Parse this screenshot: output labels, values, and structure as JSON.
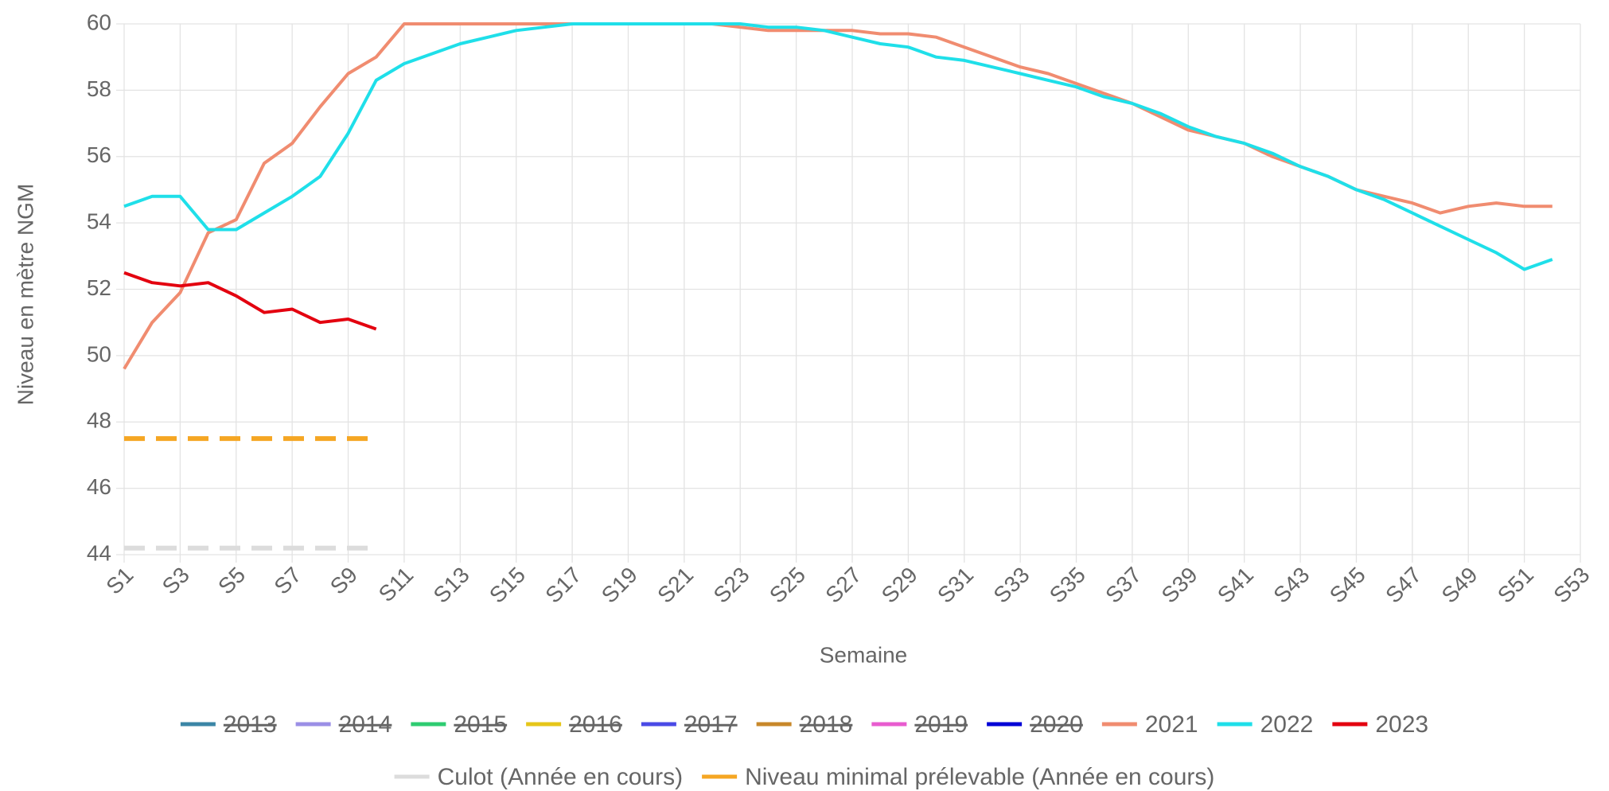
{
  "chart_data": {
    "type": "line",
    "x_label": "Semaine",
    "y_label": "Niveau en mètre NGM",
    "categories": [
      "S1",
      null,
      "S3",
      null,
      "S5",
      null,
      "S7",
      null,
      "S9",
      null,
      "S11",
      null,
      "S13",
      null,
      "S15",
      null,
      "S17",
      null,
      "S19",
      null,
      "S21",
      null,
      "S23",
      null,
      "S25",
      null,
      "S27",
      null,
      "S29",
      null,
      "S31",
      null,
      "S33",
      null,
      "S35",
      null,
      "S37",
      null,
      "S39",
      null,
      "S41",
      null,
      "S43",
      null,
      "S45",
      null,
      "S47",
      null,
      "S49",
      null,
      "S51",
      null,
      "S53"
    ],
    "ylim": [
      44,
      60
    ],
    "yticks": [
      44,
      46,
      48,
      50,
      52,
      54,
      56,
      58,
      60
    ],
    "grid": true,
    "series": [
      {
        "name": "2013",
        "color": "#3b86a6",
        "hidden": true
      },
      {
        "name": "2014",
        "color": "#9b8fe6",
        "hidden": true
      },
      {
        "name": "2015",
        "color": "#2ecc71",
        "hidden": true
      },
      {
        "name": "2016",
        "color": "#e6c619",
        "hidden": true
      },
      {
        "name": "2017",
        "color": "#4a4ae6",
        "hidden": true
      },
      {
        "name": "2018",
        "color": "#c8882a",
        "hidden": true
      },
      {
        "name": "2019",
        "color": "#e85ccf",
        "hidden": true
      },
      {
        "name": "2020",
        "color": "#0000d6",
        "hidden": true
      },
      {
        "name": "2021",
        "color": "#f08c70",
        "values": [
          49.6,
          51.0,
          51.9,
          53.7,
          54.1,
          55.8,
          56.4,
          57.5,
          58.5,
          59.0,
          60,
          60,
          60,
          60,
          60,
          60,
          60,
          60,
          60,
          60,
          60,
          60,
          59.9,
          59.8,
          59.8,
          59.8,
          59.8,
          59.7,
          59.7,
          59.6,
          59.3,
          59.0,
          58.7,
          58.5,
          58.2,
          57.9,
          57.6,
          57.2,
          56.8,
          56.6,
          56.4,
          56.0,
          55.7,
          55.4,
          55.0,
          54.8,
          54.6,
          54.3,
          54.5,
          54.6,
          54.5,
          54.5,
          null
        ]
      },
      {
        "name": "2022",
        "color": "#1fdfe9",
        "values": [
          54.5,
          54.8,
          54.8,
          53.8,
          53.8,
          54.3,
          54.8,
          55.4,
          56.7,
          58.3,
          58.8,
          59.1,
          59.4,
          59.6,
          59.8,
          59.9,
          60,
          60,
          60,
          60,
          60,
          60,
          60,
          59.9,
          59.9,
          59.8,
          59.6,
          59.4,
          59.3,
          59.0,
          58.9,
          58.7,
          58.5,
          58.3,
          58.1,
          57.8,
          57.6,
          57.3,
          56.9,
          56.6,
          56.4,
          56.1,
          55.7,
          55.4,
          55.0,
          54.7,
          54.3,
          53.9,
          53.5,
          53.1,
          52.6,
          52.9,
          null
        ]
      },
      {
        "name": "2023",
        "color": "#e3000f",
        "values": [
          52.5,
          52.2,
          52.1,
          52.2,
          51.8,
          51.3,
          51.4,
          51.0,
          51.1,
          50.8,
          null,
          null,
          null,
          null,
          null,
          null,
          null,
          null,
          null,
          null,
          null,
          null,
          null,
          null,
          null,
          null,
          null,
          null,
          null,
          null,
          null,
          null,
          null,
          null,
          null,
          null,
          null,
          null,
          null,
          null,
          null,
          null,
          null,
          null,
          null,
          null,
          null,
          null,
          null,
          null,
          null,
          null,
          null
        ]
      },
      {
        "name": "Culot (Année en cours)",
        "color": "#dcdcdc",
        "dash": true,
        "values": [
          44.2,
          44.2,
          44.2,
          44.2,
          44.2,
          44.2,
          44.2,
          44.2,
          44.2,
          44.2,
          null,
          null,
          null,
          null,
          null,
          null,
          null,
          null,
          null,
          null,
          null,
          null,
          null,
          null,
          null,
          null,
          null,
          null,
          null,
          null,
          null,
          null,
          null,
          null,
          null,
          null,
          null,
          null,
          null,
          null,
          null,
          null,
          null,
          null,
          null,
          null,
          null,
          null,
          null,
          null,
          null,
          null,
          null
        ]
      },
      {
        "name": "Niveau minimal prélevable (Année en cours)",
        "color": "#f5a623",
        "dash": true,
        "values": [
          47.5,
          47.5,
          47.5,
          47.5,
          47.5,
          47.5,
          47.5,
          47.5,
          47.5,
          47.5,
          null,
          null,
          null,
          null,
          null,
          null,
          null,
          null,
          null,
          null,
          null,
          null,
          null,
          null,
          null,
          null,
          null,
          null,
          null,
          null,
          null,
          null,
          null,
          null,
          null,
          null,
          null,
          null,
          null,
          null,
          null,
          null,
          null,
          null,
          null,
          null,
          null,
          null,
          null,
          null,
          null,
          null,
          null
        ]
      }
    ]
  }
}
